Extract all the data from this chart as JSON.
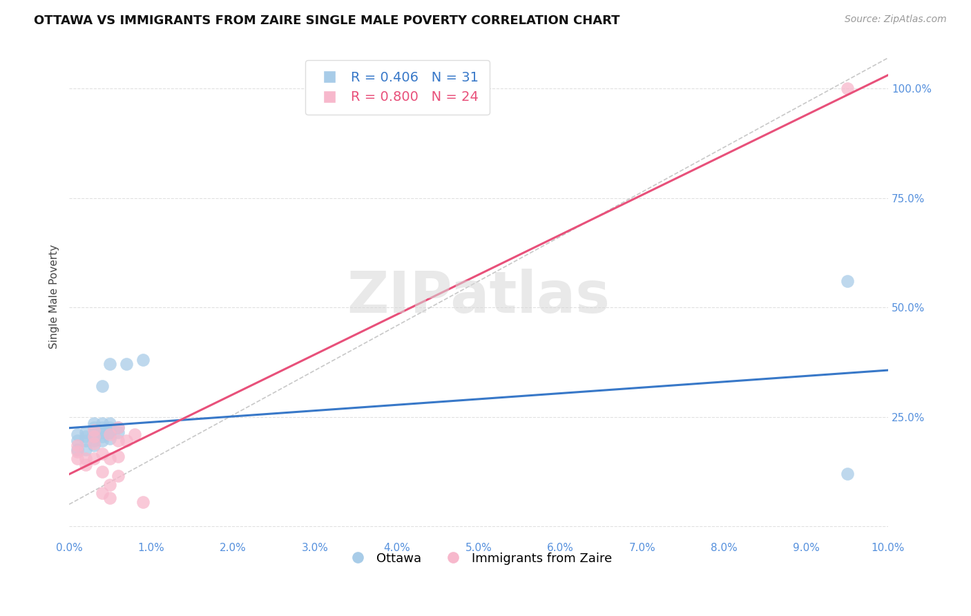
{
  "title": "OTTAWA VS IMMIGRANTS FROM ZAIRE SINGLE MALE POVERTY CORRELATION CHART",
  "source": "Source: ZipAtlas.com",
  "ylabel": "Single Male Poverty",
  "xlim": [
    0.0,
    0.1
  ],
  "ylim": [
    -0.03,
    1.08
  ],
  "xticks": [
    0.0,
    0.01,
    0.02,
    0.03,
    0.04,
    0.05,
    0.06,
    0.07,
    0.08,
    0.09,
    0.1
  ],
  "yticks": [
    0.0,
    0.25,
    0.5,
    0.75,
    1.0
  ],
  "ytick_labels": [
    "",
    "25.0%",
    "50.0%",
    "75.0%",
    "100.0%"
  ],
  "xtick_labels": [
    "0.0%",
    "1.0%",
    "2.0%",
    "3.0%",
    "4.0%",
    "5.0%",
    "6.0%",
    "7.0%",
    "8.0%",
    "9.0%",
    "10.0%"
  ],
  "legend_label_ottawa": "Ottawa",
  "legend_label_zaire": "Immigrants from Zaire",
  "r_ottawa": 0.406,
  "n_ottawa": 31,
  "r_zaire": 0.8,
  "n_zaire": 24,
  "ottawa_color": "#a8cce8",
  "zaire_color": "#f7b8cc",
  "trend_ottawa_color": "#3878c8",
  "trend_zaire_color": "#e8507a",
  "diag_color": "#c8c8c8",
  "watermark_color": "#d8d8d8",
  "watermark": "ZIPatlas",
  "background_color": "#ffffff",
  "ottawa_x": [
    0.001,
    0.001,
    0.001,
    0.002,
    0.002,
    0.002,
    0.002,
    0.003,
    0.003,
    0.003,
    0.003,
    0.003,
    0.003,
    0.004,
    0.004,
    0.004,
    0.004,
    0.004,
    0.004,
    0.005,
    0.005,
    0.005,
    0.005,
    0.005,
    0.005,
    0.006,
    0.006,
    0.007,
    0.009,
    0.095,
    0.095
  ],
  "ottawa_y": [
    0.175,
    0.195,
    0.21,
    0.175,
    0.195,
    0.205,
    0.215,
    0.185,
    0.195,
    0.205,
    0.215,
    0.225,
    0.235,
    0.195,
    0.205,
    0.215,
    0.225,
    0.235,
    0.32,
    0.2,
    0.215,
    0.225,
    0.235,
    0.215,
    0.37,
    0.215,
    0.225,
    0.37,
    0.38,
    0.56,
    0.12
  ],
  "zaire_x": [
    0.001,
    0.001,
    0.001,
    0.002,
    0.002,
    0.003,
    0.003,
    0.003,
    0.003,
    0.004,
    0.004,
    0.004,
    0.005,
    0.005,
    0.005,
    0.005,
    0.006,
    0.006,
    0.006,
    0.006,
    0.007,
    0.008,
    0.009,
    0.095
  ],
  "zaire_y": [
    0.155,
    0.17,
    0.185,
    0.14,
    0.155,
    0.19,
    0.205,
    0.22,
    0.155,
    0.165,
    0.125,
    0.075,
    0.155,
    0.095,
    0.065,
    0.21,
    0.225,
    0.195,
    0.16,
    0.115,
    0.195,
    0.21,
    0.055,
    1.0
  ],
  "grid_color": "#e0e0e0",
  "grid_linestyle": "--"
}
